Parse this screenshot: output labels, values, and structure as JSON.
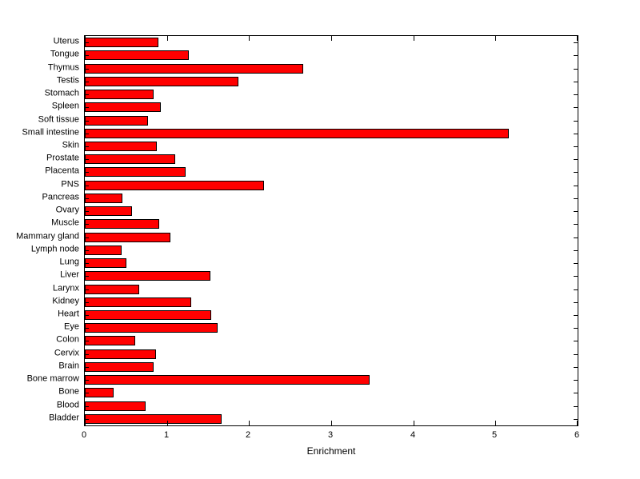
{
  "chart_data": {
    "type": "bar",
    "orientation": "horizontal",
    "title": "",
    "xlabel": "Enrichment",
    "ylabel": "",
    "xlim": [
      0,
      6
    ],
    "xticks": [
      0,
      1,
      2,
      3,
      4,
      5,
      6
    ],
    "grid": false,
    "legend": "none",
    "bar_color": "#ff0000",
    "bar_edge_color": "#000000",
    "categories": [
      "Uterus",
      "Tongue",
      "Thymus",
      "Testis",
      "Stomach",
      "Spleen",
      "Soft tissue",
      "Small intestine",
      "Skin",
      "Prostate",
      "Placenta",
      "PNS",
      "Pancreas",
      "Ovary",
      "Muscle",
      "Mammary gland",
      "Lymph node",
      "Lung",
      "Liver",
      "Larynx",
      "Kidney",
      "Heart",
      "Eye",
      "Colon",
      "Cervix",
      "Brain",
      "Bone marrow",
      "Bone",
      "Blood",
      "Bladder"
    ],
    "values": [
      0.9,
      1.27,
      2.66,
      1.87,
      0.84,
      0.93,
      0.77,
      5.16,
      0.88,
      1.1,
      1.23,
      2.18,
      0.46,
      0.57,
      0.91,
      1.04,
      0.45,
      0.51,
      1.53,
      0.66,
      1.3,
      1.54,
      1.62,
      0.61,
      0.87,
      0.84,
      3.47,
      0.35,
      0.74,
      1.67
    ]
  }
}
